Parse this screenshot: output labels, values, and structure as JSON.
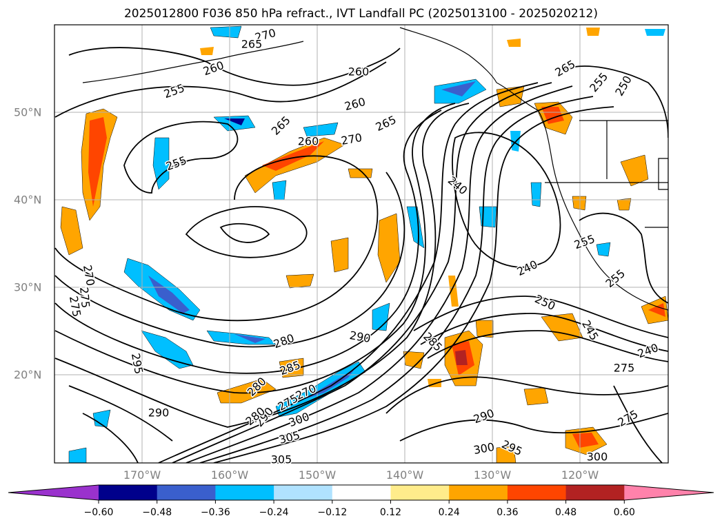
{
  "title": "2025012800 F036 850 hPa refract., IVT Landfall PC (2025013100 - 2025020212)",
  "lon_labels": [
    "170°W",
    "160°W",
    "150°W",
    "140°W",
    "130°W",
    "120°W"
  ],
  "lat_labels": [
    "50°N",
    "40°N",
    "30°N",
    "20°N"
  ],
  "contour_labels": [
    "270",
    "265",
    "260",
    "260",
    "260",
    "255",
    "250",
    "265",
    "260",
    "265",
    "270",
    "265",
    "255",
    "240",
    "240",
    "250",
    "255",
    "255",
    "255",
    "245",
    "240",
    "275",
    "270",
    "275",
    "280",
    "275",
    "295",
    "290",
    "280",
    "285",
    "290",
    "285",
    "290",
    "270",
    "275",
    "280",
    "300",
    "305",
    "305",
    "300",
    "295",
    "300",
    "290",
    "275"
  ],
  "colorbar": {
    "ticks": [
      "−0.60",
      "−0.48",
      "−0.36",
      "−0.24",
      "−0.12",
      "0.12",
      "0.24",
      "0.36",
      "0.48",
      "0.60"
    ],
    "colors": [
      "#9a32cd",
      "#00008b",
      "#3a5fcd",
      "#00bfff",
      "#b0e2ff",
      "#ffffff",
      "#ffec8b",
      "#ffa500",
      "#ff4500",
      "#b22222",
      "#ff82ab"
    ]
  }
}
